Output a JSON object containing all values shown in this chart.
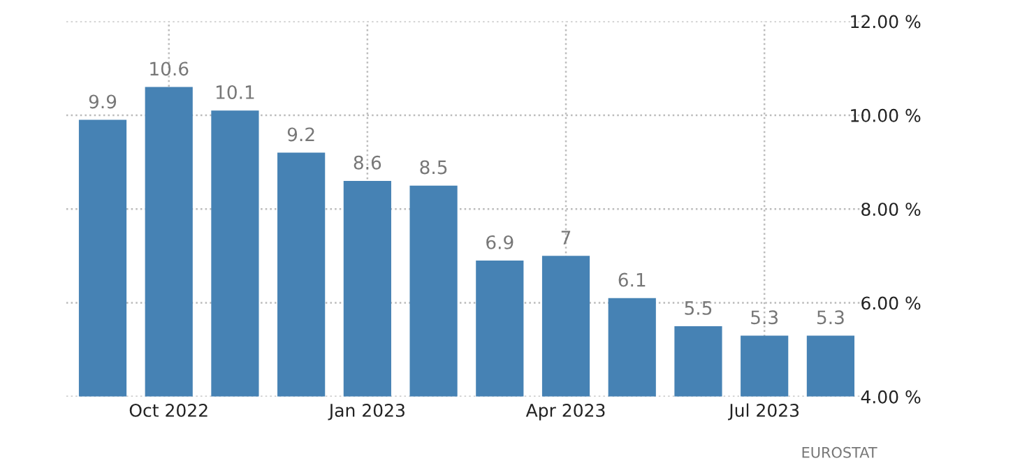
{
  "chart_data": {
    "type": "bar",
    "categories": [
      null,
      "Oct 2022",
      null,
      null,
      "Jan 2023",
      null,
      null,
      "Apr 2023",
      null,
      null,
      "Jul 2023",
      null
    ],
    "values": [
      9.9,
      10.6,
      10.1,
      9.2,
      8.6,
      8.5,
      6.9,
      7,
      6.1,
      5.5,
      5.3,
      5.3
    ],
    "color": "#4682b4",
    "data_labels": true,
    "ylim": [
      4,
      12
    ],
    "yticks": [
      {
        "value": 4,
        "label": "4.00 %"
      },
      {
        "value": 6,
        "label": "6.00 %"
      },
      {
        "value": 8,
        "label": "8.00 %"
      },
      {
        "value": 10,
        "label": "10.00 %"
      },
      {
        "value": 12,
        "label": "12.00 %"
      }
    ],
    "grid": true,
    "annotations": [
      "EUROSTAT"
    ]
  }
}
